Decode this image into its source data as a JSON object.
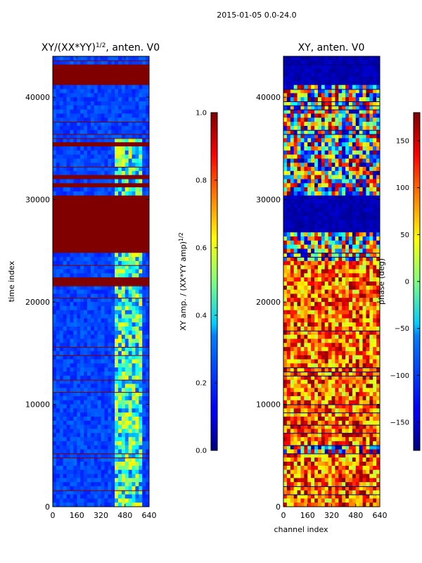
{
  "chart_data": [
    {
      "type": "heatmap",
      "suptitle": "2015-01-05 0.0-24.0",
      "title_prefix": "XY/(XX*YY)",
      "title_exp": "1/2",
      "title_suffix": ", anten. V0",
      "xlabel": "",
      "ylabel": "time index",
      "xlim": [
        0,
        640
      ],
      "ylim": [
        0,
        44000
      ],
      "xticks": [
        0,
        160,
        320,
        480,
        640
      ],
      "yticks": [
        0,
        10000,
        20000,
        30000,
        40000
      ],
      "colorbar": {
        "label_main": "XY amp. / (XX*YY amp)",
        "label_exp": "1/2",
        "ticks": [
          0.0,
          0.2,
          0.4,
          0.6,
          0.8,
          1.0
        ],
        "range": [
          0.0,
          1.0
        ]
      },
      "saturated_rows": [
        [
          41400,
          43000
        ],
        [
          27500,
          30000
        ],
        [
          29600,
          30300
        ],
        [
          21800,
          22200
        ],
        [
          25000,
          27800
        ]
      ],
      "background_value": 0.15,
      "active_channels": [
        420,
        600
      ]
    },
    {
      "type": "heatmap",
      "title": "XY, anten. V0",
      "xlabel": "channel index",
      "ylabel": "",
      "xlim": [
        0,
        640
      ],
      "ylim": [
        0,
        44000
      ],
      "xticks": [
        0,
        160,
        320,
        480,
        640
      ],
      "yticks": [
        0,
        10000,
        20000,
        30000,
        40000
      ],
      "colorbar": {
        "label": "phase (deg)",
        "ticks": [
          -150,
          -100,
          -50,
          0,
          50,
          100,
          150
        ],
        "range": [
          -180,
          180
        ]
      },
      "low_phase_rows": [
        [
          27000,
          30500
        ],
        [
          41200,
          44000
        ]
      ],
      "high_phase_rows": [
        [
          0,
          5000
        ],
        [
          6000,
          24000
        ]
      ]
    }
  ]
}
